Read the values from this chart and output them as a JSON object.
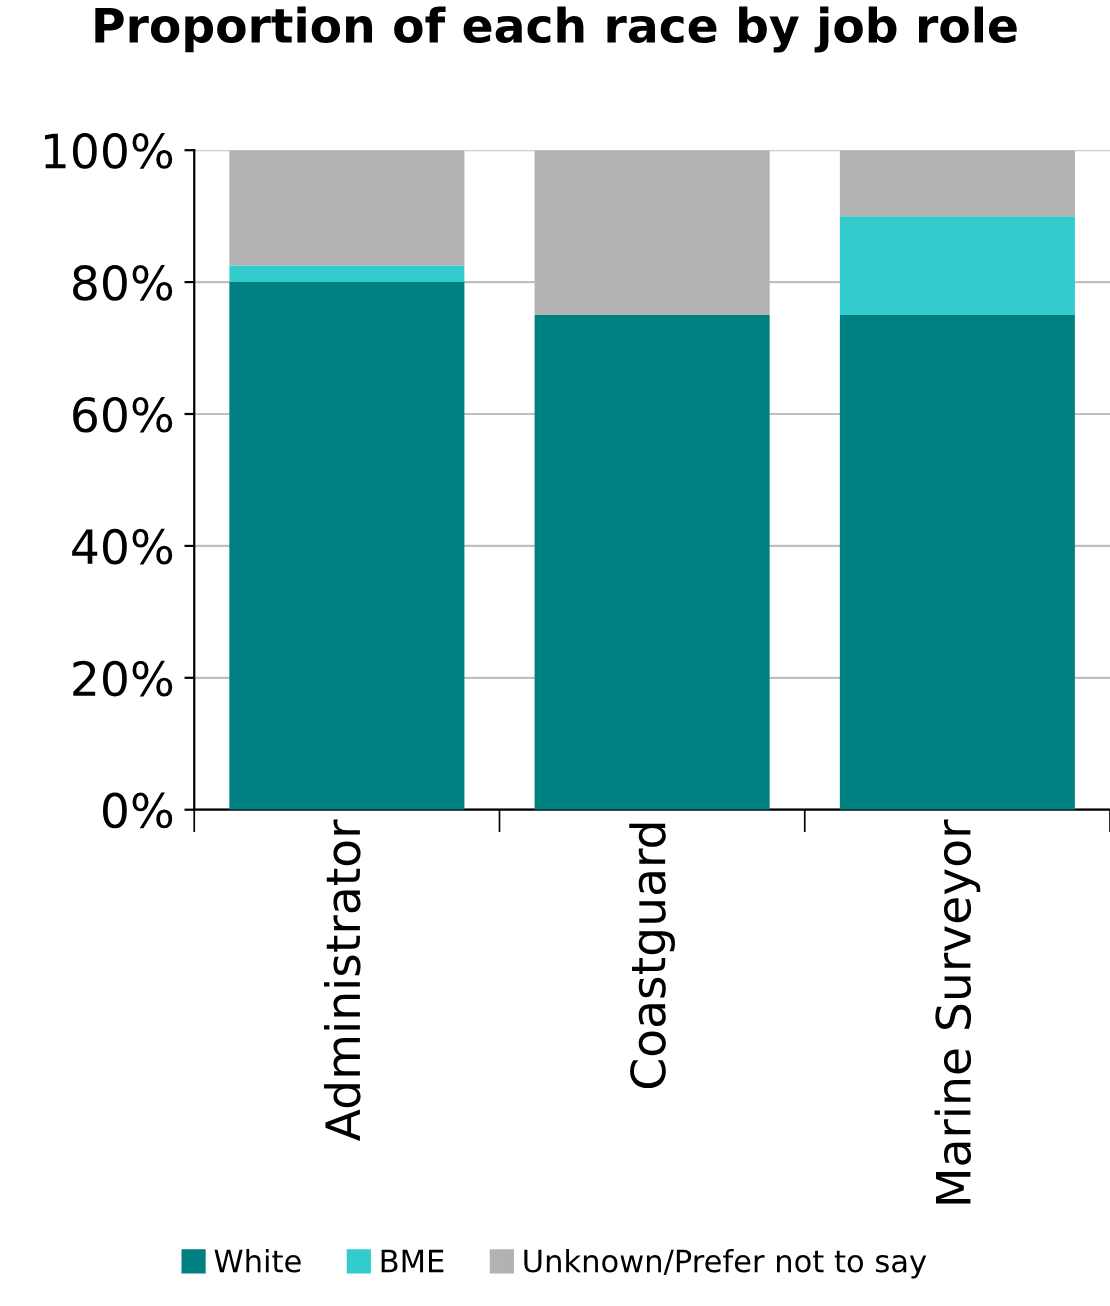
{
  "chart_data": {
    "type": "bar",
    "title": "Proportion of each race by job role",
    "stacked": true,
    "categories": [
      "Administrator",
      "Coastguard",
      "Marine Surveyor"
    ],
    "series": [
      {
        "name": "White",
        "color": "#008080",
        "values": [
          80,
          75,
          75
        ]
      },
      {
        "name": "BME",
        "color": "#33cccc",
        "values": [
          2.5,
          0,
          15
        ]
      },
      {
        "name": "Unknown/Prefer not to say",
        "color": "#b2b2b2",
        "values": [
          17.5,
          25,
          10
        ]
      }
    ],
    "ylim": [
      0,
      100
    ],
    "yticks": [
      {
        "value": 0,
        "label": "0%"
      },
      {
        "value": 20,
        "label": "20%"
      },
      {
        "value": 40,
        "label": "40%"
      },
      {
        "value": 60,
        "label": "60%"
      },
      {
        "value": 80,
        "label": "80%"
      },
      {
        "value": 100,
        "label": "100%"
      }
    ],
    "grid": "y",
    "legend": "bottom"
  }
}
